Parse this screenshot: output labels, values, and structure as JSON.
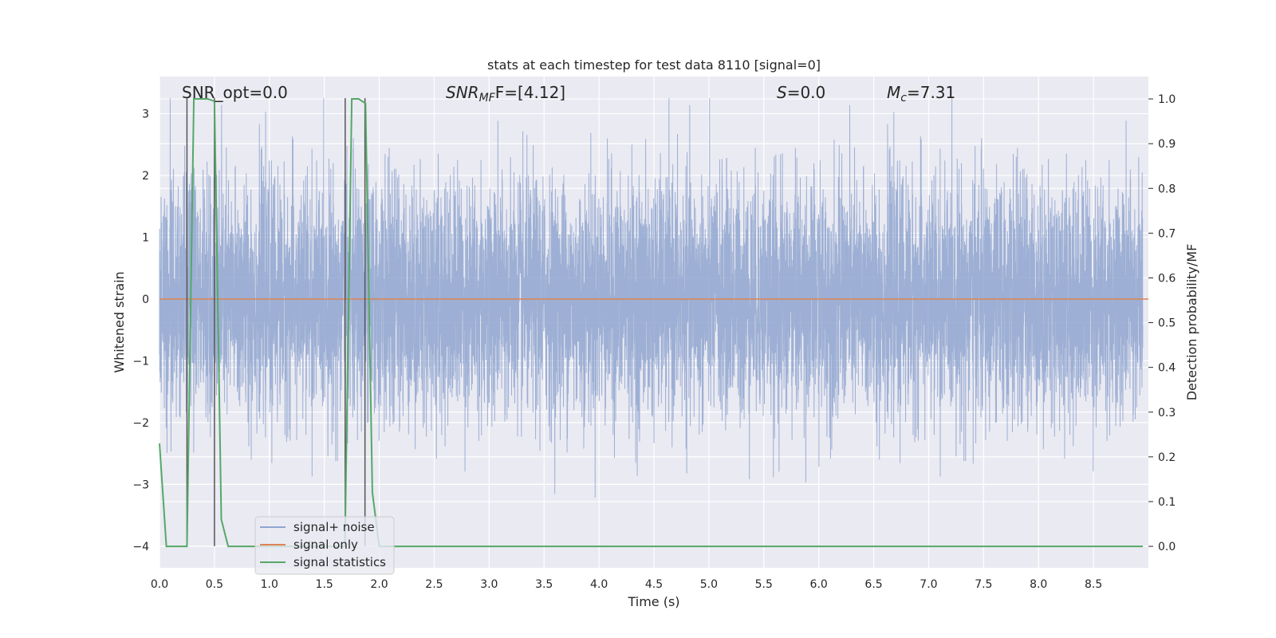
{
  "chart_data": {
    "type": "line",
    "title": "stats at each timestep for test data 8110 [signal=0]",
    "xlabel": "Time (s)",
    "ylabel": "Whitened strain",
    "y2label": "Detection probability/MF",
    "xlim": [
      0.0,
      9.0
    ],
    "ylim": [
      -4.35,
      3.6
    ],
    "y2lim": [
      -0.048,
      1.05
    ],
    "x_ticks": [
      "0.0",
      "0.5",
      "1.0",
      "1.5",
      "2.0",
      "2.5",
      "3.0",
      "3.5",
      "4.0",
      "4.5",
      "5.0",
      "5.5",
      "6.0",
      "6.5",
      "7.0",
      "7.5",
      "8.0",
      "8.5"
    ],
    "y_ticks": [
      "−4",
      "−3",
      "−2",
      "−1",
      "0",
      "1",
      "2",
      "3"
    ],
    "y2_ticks": [
      "0.0",
      "0.1",
      "0.2",
      "0.3",
      "0.4",
      "0.5",
      "0.6",
      "0.7",
      "0.8",
      "0.9",
      "1.0"
    ],
    "grid": true,
    "legend_position": "lower-left",
    "annotations": {
      "snr_opt": "SNR_opt=0.0",
      "snr_mf_sym": "SNR",
      "snr_mf_sub": "MF",
      "snr_mf_rest": "F=[4.12]",
      "s_sym": "S",
      "s_rest": "=0.0",
      "mc_sym": "M",
      "mc_sub": "c",
      "mc_rest": "=7.31"
    },
    "colors": {
      "noise": "#8fa5cf",
      "signal": "#dd8452",
      "stats": "#55a868",
      "vlines": "#555555",
      "background": "#eaeaf2",
      "grid": "#ffffff"
    },
    "series": [
      {
        "name": "signal+ noise",
        "axis": "left",
        "description_type": "noise",
        "range": [
          -4.0,
          3.25
        ],
        "points": 8192
      },
      {
        "name": "signal only",
        "axis": "left",
        "x": [
          0.0,
          9.0
        ],
        "y": [
          0.0,
          0.0
        ]
      },
      {
        "name": "signal statistics",
        "axis": "right",
        "x": [
          0.0,
          0.0625,
          0.125,
          0.1875,
          0.25,
          0.3125,
          0.375,
          0.4375,
          0.5,
          0.5625,
          0.625,
          0.6875,
          1.625,
          1.6875,
          1.75,
          1.8125,
          1.875,
          1.9375,
          2.0,
          2.0625,
          8.95
        ],
        "y": [
          0.23,
          0.0,
          0.0,
          0.0,
          0.0,
          1.0,
          1.0,
          1.0,
          0.995,
          0.06,
          0.0,
          0.0,
          0.0,
          0.0,
          1.0,
          1.0,
          0.99,
          0.12,
          0.0,
          0.0,
          0.0
        ]
      }
    ],
    "vertical_lines": [
      0.25,
      0.5,
      1.69,
      1.87
    ]
  }
}
